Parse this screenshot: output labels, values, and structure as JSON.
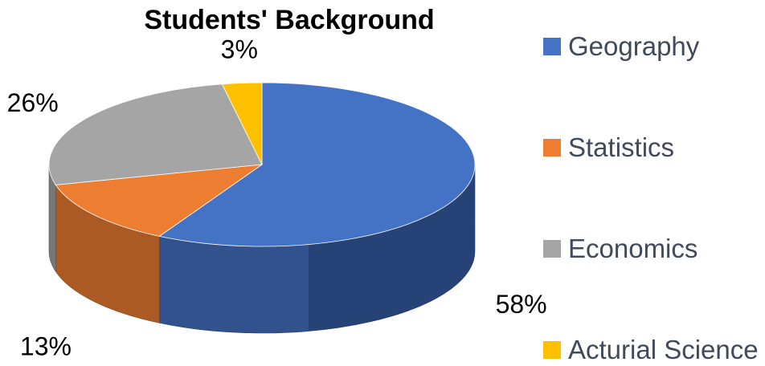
{
  "chart_data": {
    "type": "pie",
    "title": "Students' Background",
    "categories": [
      "Geography",
      "Statistics",
      "Economics",
      "Acturial Science"
    ],
    "values": [
      58,
      13,
      26,
      3
    ],
    "data_labels": [
      "58%",
      "13%",
      "26%",
      "3%"
    ],
    "colors": [
      "#4472c4",
      "#ed7d31",
      "#a5a5a5",
      "#ffc000"
    ],
    "legend_placement": "right",
    "style": "3d"
  }
}
